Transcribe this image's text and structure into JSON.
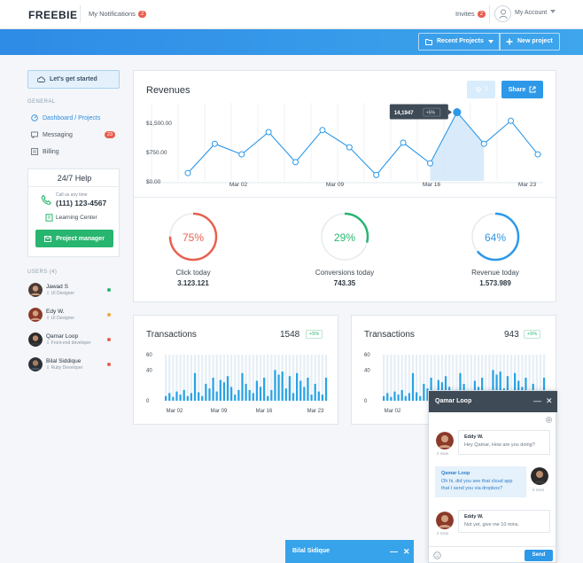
{
  "header": {
    "brand": "FREEBIE",
    "notifications_label": "My Notifications",
    "notifications_count": "2",
    "invites_label": "Invites",
    "invites_count": "2",
    "account_label": "My Account"
  },
  "toolbar": {
    "recent_projects": "Recent Projects",
    "new_project": "New project"
  },
  "sidebar": {
    "get_started": "Let's get started",
    "general_title": "GENERAL",
    "nav": [
      {
        "label": "Dashboard / Projects",
        "icon": "dashboard-icon"
      },
      {
        "label": "Messaging",
        "icon": "messaging-icon",
        "badge": "23"
      },
      {
        "label": "Billing",
        "icon": "billing-icon"
      }
    ],
    "help": {
      "title": "24/7 Help",
      "call_us": "Call us any time",
      "phone": "(111) 123-4567",
      "learning": "Learning Center",
      "pm_button": "Project manager"
    },
    "users_title": "USERS (4)",
    "users": [
      {
        "name": "Jawad S",
        "role": "UI Designer",
        "status_color": "#27b56f"
      },
      {
        "name": "Edy W.",
        "role": "UI Designer",
        "status_color": "#f2a93b"
      },
      {
        "name": "Qamar Loop",
        "role": "Front-end developer",
        "status_color": "#e85d4f"
      },
      {
        "name": "Bilal Siddique",
        "role": "Ruby Developer",
        "status_color": "#e85d4f"
      }
    ]
  },
  "revenue": {
    "title": "Revenues",
    "gear_count": "3",
    "share_label": "Share",
    "tooltip_value": "14,1947",
    "tooltip_delta": "+5%",
    "chart_data": {
      "type": "line",
      "y_ticks": [
        "$1,500.00",
        "$750.00",
        "$0.00"
      ],
      "x_ticks": [
        "Mar 02",
        "Mar 09",
        "Mar 16",
        "Mar 23"
      ],
      "values": [
        200,
        950,
        680,
        1250,
        480,
        1300,
        860,
        150,
        980,
        450,
        1760,
        950,
        1540,
        680
      ],
      "ylim": [
        0,
        2000
      ]
    },
    "stats": [
      {
        "percent": "75%",
        "fraction": 0.75,
        "label": "Click today",
        "value": "3.123.121",
        "color": "#e8604f"
      },
      {
        "percent": "29%",
        "fraction": 0.29,
        "label": "Conversions today",
        "value": "743.35",
        "color": "#27b56f"
      },
      {
        "percent": "64%",
        "fraction": 0.64,
        "label": "Revenue today",
        "value": "1.573.989",
        "color": "#2d98e8"
      }
    ]
  },
  "transactions": [
    {
      "title": "Transactions",
      "count": "1548",
      "delta": "+5%",
      "chart_data": {
        "type": "bar",
        "y_ticks": [
          "60",
          "40",
          "0"
        ],
        "x_ticks": [
          "Mar 02",
          "Mar 09",
          "Mar 16",
          "Mar 23"
        ],
        "ylim": [
          0,
          60
        ],
        "values": [
          6,
          10,
          5,
          12,
          8,
          14,
          6,
          10,
          36,
          11,
          6,
          22,
          16,
          30,
          12,
          27,
          24,
          32,
          18,
          8,
          14,
          36,
          22,
          14,
          10,
          26,
          18,
          30,
          6,
          14,
          40,
          34,
          38,
          16,
          32,
          10,
          36,
          26,
          18,
          30,
          8,
          22,
          12,
          8,
          30
        ]
      }
    },
    {
      "title": "Transactions",
      "count": "943",
      "delta": "+5%",
      "chart_data": {
        "type": "bar",
        "y_ticks": [
          "60",
          "40",
          "0"
        ],
        "x_ticks": [
          "Mar 02"
        ],
        "ylim": [
          0,
          60
        ],
        "values": [
          6,
          10,
          5,
          12,
          8,
          14,
          6,
          10,
          36,
          11,
          6,
          22,
          16,
          30,
          12,
          27,
          24,
          32,
          18,
          8,
          14,
          36,
          22,
          14,
          10,
          26,
          18,
          30,
          6,
          14,
          40,
          34,
          38,
          16,
          32,
          10,
          36,
          26,
          18,
          30,
          8,
          22,
          12,
          8,
          30
        ]
      }
    }
  ],
  "chat": {
    "title": "Qamar Loop",
    "messages": [
      {
        "author": "Eddy W.",
        "text": "Hey Qamar, How are you doing?",
        "time": "2 mins",
        "own": false
      },
      {
        "author": "Qamar Loop",
        "text": "Oh hi, did you see that cloud app that I send you via dropbox?",
        "time": "5 mins",
        "own": true
      },
      {
        "author": "Eddy W.",
        "text": "Not yet, give me 10 mins.",
        "time": "2 mins",
        "own": false
      }
    ],
    "send_label": "Send"
  },
  "minichat": {
    "title": "Bilal Sidique"
  }
}
